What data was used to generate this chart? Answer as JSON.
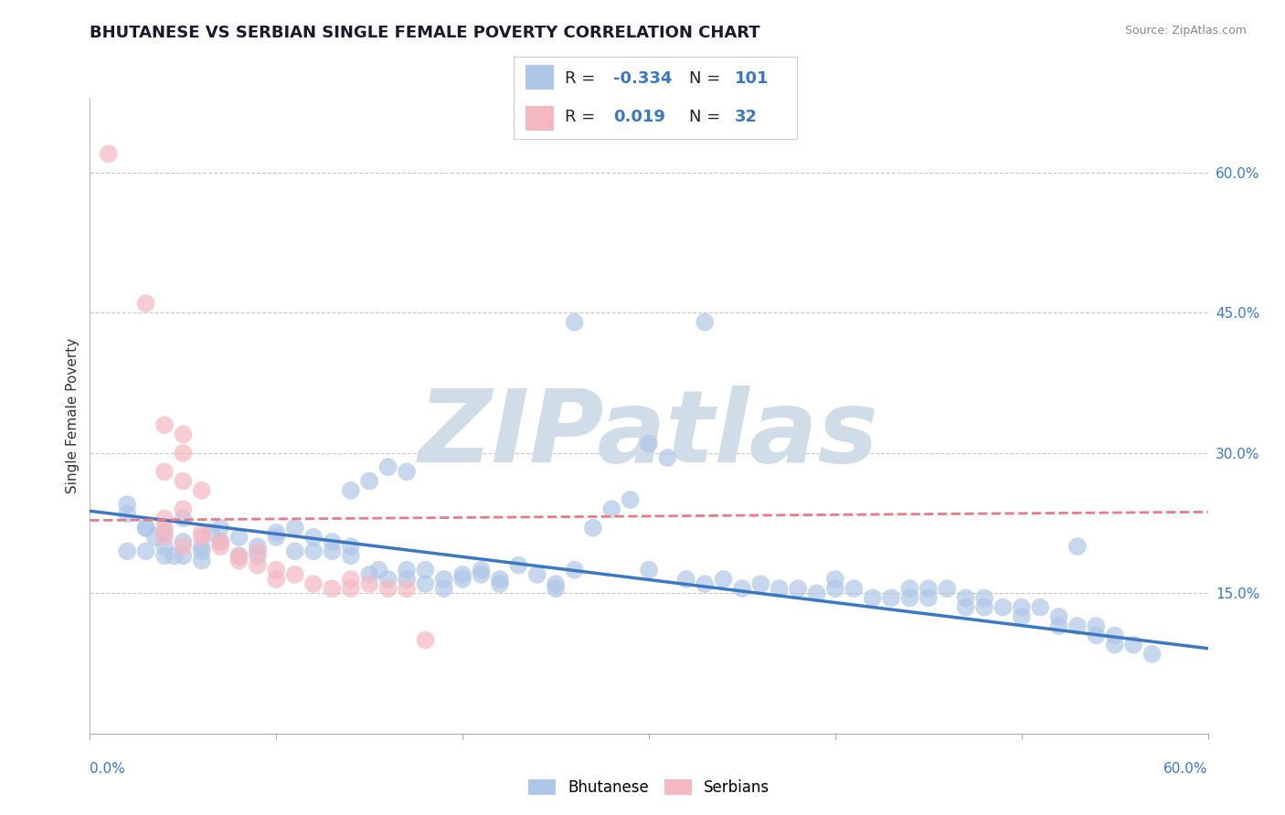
{
  "title": "BHUTANESE VS SERBIAN SINGLE FEMALE POVERTY CORRELATION CHART",
  "source": "Source: ZipAtlas.com",
  "ylabel": "Single Female Poverty",
  "yticks": [
    "60.0%",
    "45.0%",
    "30.0%",
    "15.0%"
  ],
  "ytick_values": [
    0.6,
    0.45,
    0.3,
    0.15
  ],
  "xrange": [
    0.0,
    0.6
  ],
  "yrange": [
    0.0,
    0.68
  ],
  "blue_R": -0.334,
  "blue_N": 101,
  "pink_R": 0.019,
  "pink_N": 32,
  "blue_color": "#aec6e8",
  "pink_color": "#f4b8c1",
  "blue_line_color": "#3b78c4",
  "pink_line_color": "#e87a8a",
  "watermark": "ZIPatlas",
  "blue_points": [
    [
      0.02,
      0.235
    ],
    [
      0.03,
      0.22
    ],
    [
      0.04,
      0.215
    ],
    [
      0.04,
      0.2
    ],
    [
      0.05,
      0.23
    ],
    [
      0.02,
      0.195
    ],
    [
      0.03,
      0.195
    ],
    [
      0.035,
      0.21
    ],
    [
      0.04,
      0.19
    ],
    [
      0.045,
      0.19
    ],
    [
      0.05,
      0.205
    ],
    [
      0.06,
      0.195
    ],
    [
      0.06,
      0.2
    ],
    [
      0.065,
      0.215
    ],
    [
      0.07,
      0.22
    ],
    [
      0.07,
      0.205
    ],
    [
      0.08,
      0.21
    ],
    [
      0.08,
      0.19
    ],
    [
      0.09,
      0.2
    ],
    [
      0.09,
      0.19
    ],
    [
      0.1,
      0.215
    ],
    [
      0.1,
      0.21
    ],
    [
      0.11,
      0.22
    ],
    [
      0.11,
      0.195
    ],
    [
      0.12,
      0.21
    ],
    [
      0.12,
      0.195
    ],
    [
      0.13,
      0.205
    ],
    [
      0.13,
      0.195
    ],
    [
      0.14,
      0.2
    ],
    [
      0.14,
      0.19
    ],
    [
      0.15,
      0.17
    ],
    [
      0.155,
      0.175
    ],
    [
      0.16,
      0.165
    ],
    [
      0.17,
      0.175
    ],
    [
      0.17,
      0.165
    ],
    [
      0.18,
      0.175
    ],
    [
      0.18,
      0.16
    ],
    [
      0.19,
      0.165
    ],
    [
      0.19,
      0.155
    ],
    [
      0.2,
      0.17
    ],
    [
      0.2,
      0.165
    ],
    [
      0.21,
      0.175
    ],
    [
      0.21,
      0.17
    ],
    [
      0.22,
      0.165
    ],
    [
      0.22,
      0.16
    ],
    [
      0.23,
      0.18
    ],
    [
      0.24,
      0.17
    ],
    [
      0.25,
      0.155
    ],
    [
      0.25,
      0.16
    ],
    [
      0.26,
      0.175
    ],
    [
      0.27,
      0.22
    ],
    [
      0.28,
      0.24
    ],
    [
      0.29,
      0.25
    ],
    [
      0.3,
      0.31
    ],
    [
      0.31,
      0.295
    ],
    [
      0.14,
      0.26
    ],
    [
      0.15,
      0.27
    ],
    [
      0.16,
      0.285
    ],
    [
      0.17,
      0.28
    ],
    [
      0.3,
      0.175
    ],
    [
      0.32,
      0.165
    ],
    [
      0.33,
      0.16
    ],
    [
      0.34,
      0.165
    ],
    [
      0.35,
      0.155
    ],
    [
      0.36,
      0.16
    ],
    [
      0.37,
      0.155
    ],
    [
      0.38,
      0.155
    ],
    [
      0.39,
      0.15
    ],
    [
      0.4,
      0.165
    ],
    [
      0.4,
      0.155
    ],
    [
      0.41,
      0.155
    ],
    [
      0.42,
      0.145
    ],
    [
      0.43,
      0.145
    ],
    [
      0.44,
      0.145
    ],
    [
      0.44,
      0.155
    ],
    [
      0.45,
      0.145
    ],
    [
      0.45,
      0.155
    ],
    [
      0.46,
      0.155
    ],
    [
      0.47,
      0.145
    ],
    [
      0.47,
      0.135
    ],
    [
      0.48,
      0.145
    ],
    [
      0.48,
      0.135
    ],
    [
      0.49,
      0.135
    ],
    [
      0.5,
      0.125
    ],
    [
      0.5,
      0.135
    ],
    [
      0.51,
      0.135
    ],
    [
      0.52,
      0.125
    ],
    [
      0.52,
      0.115
    ],
    [
      0.53,
      0.115
    ],
    [
      0.54,
      0.105
    ],
    [
      0.54,
      0.115
    ],
    [
      0.55,
      0.105
    ],
    [
      0.55,
      0.095
    ],
    [
      0.56,
      0.095
    ],
    [
      0.57,
      0.085
    ],
    [
      0.26,
      0.44
    ],
    [
      0.33,
      0.44
    ],
    [
      0.53,
      0.2
    ],
    [
      0.02,
      0.245
    ],
    [
      0.03,
      0.22
    ],
    [
      0.05,
      0.19
    ],
    [
      0.06,
      0.185
    ]
  ],
  "pink_points": [
    [
      0.01,
      0.62
    ],
    [
      0.03,
      0.46
    ],
    [
      0.04,
      0.33
    ],
    [
      0.05,
      0.32
    ],
    [
      0.05,
      0.3
    ],
    [
      0.04,
      0.28
    ],
    [
      0.05,
      0.27
    ],
    [
      0.06,
      0.26
    ],
    [
      0.05,
      0.24
    ],
    [
      0.04,
      0.23
    ],
    [
      0.04,
      0.22
    ],
    [
      0.04,
      0.21
    ],
    [
      0.05,
      0.2
    ],
    [
      0.06,
      0.215
    ],
    [
      0.06,
      0.21
    ],
    [
      0.07,
      0.205
    ],
    [
      0.07,
      0.2
    ],
    [
      0.08,
      0.19
    ],
    [
      0.08,
      0.185
    ],
    [
      0.09,
      0.195
    ],
    [
      0.09,
      0.18
    ],
    [
      0.1,
      0.175
    ],
    [
      0.1,
      0.165
    ],
    [
      0.11,
      0.17
    ],
    [
      0.12,
      0.16
    ],
    [
      0.13,
      0.155
    ],
    [
      0.14,
      0.155
    ],
    [
      0.14,
      0.165
    ],
    [
      0.15,
      0.16
    ],
    [
      0.16,
      0.155
    ],
    [
      0.17,
      0.155
    ],
    [
      0.18,
      0.1
    ]
  ],
  "blue_intercept": 0.238,
  "blue_slope": -0.245,
  "pink_intercept": 0.228,
  "pink_slope": 0.015,
  "title_fontsize": 13,
  "axis_fontsize": 11,
  "legend_fontsize": 13,
  "watermark_color": "#d0dce8",
  "grid_color": "#c8c8c8",
  "background_color": "#ffffff"
}
